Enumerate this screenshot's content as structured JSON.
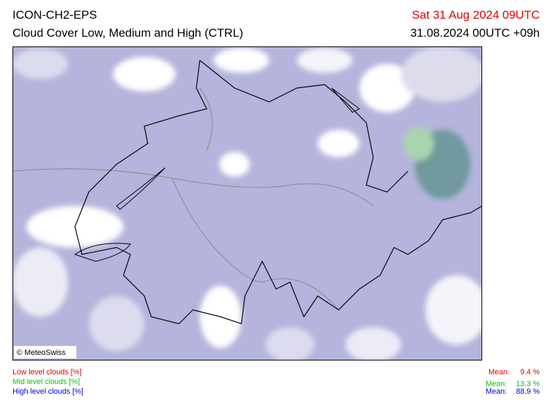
{
  "header": {
    "model": "ICON-CH2-EPS",
    "product": "Cloud Cover Low, Medium and High (CTRL)",
    "valid_time": "Sat 31 Aug 2024 09UTC",
    "run_time": "31.08.2024 00UTC +09h"
  },
  "map": {
    "copyright": "© MeteoSwiss"
  },
  "legend": [
    {
      "label": "Low level clouds [%]",
      "mean_label": "Mean:",
      "mean": "9.4 %"
    },
    {
      "label": "Mid level clouds [%]",
      "mean_label": "Mean:",
      "mean": "13.3 %"
    },
    {
      "label": "High level clouds [%]",
      "mean_label": "Mean:",
      "mean": "88.9 %"
    }
  ]
}
